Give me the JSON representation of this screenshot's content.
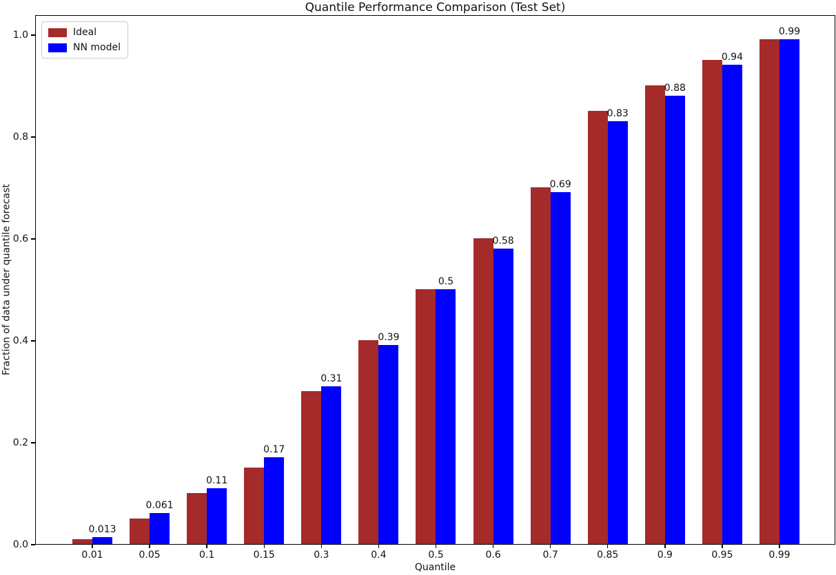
{
  "chart_data": {
    "type": "bar",
    "title": "Quantile Performance Comparison (Test Set)",
    "xlabel": "Quantile",
    "ylabel": "Fraction of data under quantile forecast",
    "categories": [
      "0.01",
      "0.05",
      "0.1",
      "0.15",
      "0.3",
      "0.4",
      "0.5",
      "0.6",
      "0.7",
      "0.85",
      "0.9",
      "0.95",
      "0.99"
    ],
    "series": [
      {
        "name": "Ideal",
        "color": "#a52a2a",
        "values": [
          0.01,
          0.05,
          0.1,
          0.15,
          0.3,
          0.4,
          0.5,
          0.6,
          0.7,
          0.85,
          0.9,
          0.95,
          0.99
        ]
      },
      {
        "name": "NN model",
        "color": "#0000ff",
        "values": [
          0.013,
          0.061,
          0.11,
          0.17,
          0.31,
          0.39,
          0.5,
          0.58,
          0.69,
          0.83,
          0.88,
          0.94,
          0.99
        ],
        "value_labels": [
          "0.013",
          "0.061",
          "0.11",
          "0.17",
          "0.31",
          "0.39",
          "0.5",
          "0.58",
          "0.69",
          "0.83",
          "0.88",
          "0.94",
          "0.99"
        ]
      }
    ],
    "yticks": [
      {
        "value": 0.0,
        "label": "0.0"
      },
      {
        "value": 0.2,
        "label": "0.2"
      },
      {
        "value": 0.4,
        "label": "0.4"
      },
      {
        "value": 0.6,
        "label": "0.6"
      },
      {
        "value": 0.8,
        "label": "0.8"
      },
      {
        "value": 1.0,
        "label": "1.0"
      }
    ],
    "ylim": [
      0.0,
      1.04
    ],
    "grid": false,
    "legend_position": "upper left",
    "text_color": "#111111",
    "spine_color": "#000000"
  }
}
